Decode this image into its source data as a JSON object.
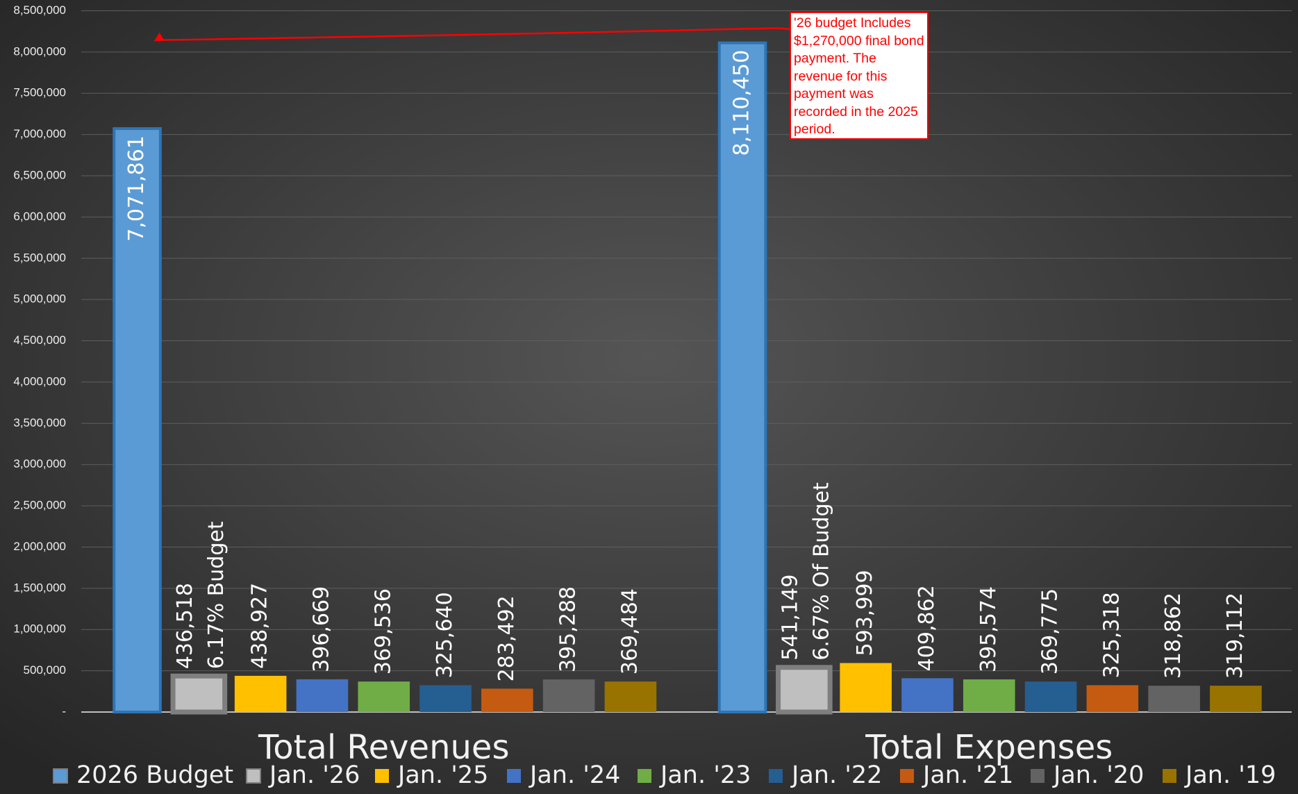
{
  "chart_data": {
    "type": "bar",
    "categories": [
      "Total Revenues",
      "Total Expenses"
    ],
    "series": [
      {
        "name": "2026 Budget",
        "color": "#5b9bd5",
        "values": [
          7071861,
          8110450
        ],
        "value_labels": [
          "7,071,861",
          "8,110,450"
        ]
      },
      {
        "name": "Jan. '26",
        "color": "#bfbfbf",
        "values": [
          436518,
          541149
        ],
        "value_labels": [
          "436,518",
          "541,149"
        ],
        "notes": [
          "6.17% Budget",
          "6.67% Of Budget"
        ]
      },
      {
        "name": "Jan. '25",
        "color": "#ffc000",
        "values": [
          438927,
          593999
        ],
        "value_labels": [
          "438,927",
          "593,999"
        ]
      },
      {
        "name": "Jan. '24",
        "color": "#4472c4",
        "values": [
          396669,
          409862
        ],
        "value_labels": [
          "396,669",
          "409,862"
        ]
      },
      {
        "name": "Jan. '23",
        "color": "#70ad47",
        "values": [
          369536,
          395574
        ],
        "value_labels": [
          "369,536",
          "395,574"
        ]
      },
      {
        "name": "Jan. '22",
        "color": "#255e91",
        "values": [
          325640,
          369775
        ],
        "value_labels": [
          "325,640",
          "369,775"
        ]
      },
      {
        "name": "Jan. '21",
        "color": "#c55a11",
        "values": [
          283492,
          325318
        ],
        "value_labels": [
          "283,492",
          "325,318"
        ]
      },
      {
        "name": "Jan. '20",
        "color": "#636363",
        "values": [
          395288,
          318862
        ],
        "value_labels": [
          "395,288",
          "318,862"
        ]
      },
      {
        "name": "Jan. '19",
        "color": "#997300",
        "values": [
          369484,
          319112
        ],
        "value_labels": [
          "369,484",
          "319,112"
        ]
      }
    ],
    "annotation": "'26 budget Includes $1,270,000 final bond payment. The revenue for this payment was recorded in the 2025 period.",
    "ylim": [
      0,
      8500000
    ],
    "yticks": [
      {
        "value": 0,
        "label": "-"
      },
      {
        "value": 500000,
        "label": "500,000"
      },
      {
        "value": 1000000,
        "label": "1,000,000"
      },
      {
        "value": 1500000,
        "label": "1,500,000"
      },
      {
        "value": 2000000,
        "label": "2,000,000"
      },
      {
        "value": 2500000,
        "label": "2,500,000"
      },
      {
        "value": 3000000,
        "label": "3,000,000"
      },
      {
        "value": 3500000,
        "label": "3,500,000"
      },
      {
        "value": 4000000,
        "label": "4,000,000"
      },
      {
        "value": 4500000,
        "label": "4,500,000"
      },
      {
        "value": 5000000,
        "label": "5,000,000"
      },
      {
        "value": 5500000,
        "label": "5,500,000"
      },
      {
        "value": 6000000,
        "label": "6,000,000"
      },
      {
        "value": 6500000,
        "label": "6,500,000"
      },
      {
        "value": 7000000,
        "label": "7,000,000"
      },
      {
        "value": 7500000,
        "label": "7,500,000"
      },
      {
        "value": 8000000,
        "label": "8,000,000"
      },
      {
        "value": 8500000,
        "label": "8,500,000"
      }
    ],
    "grid": true,
    "legend": "bottom"
  }
}
